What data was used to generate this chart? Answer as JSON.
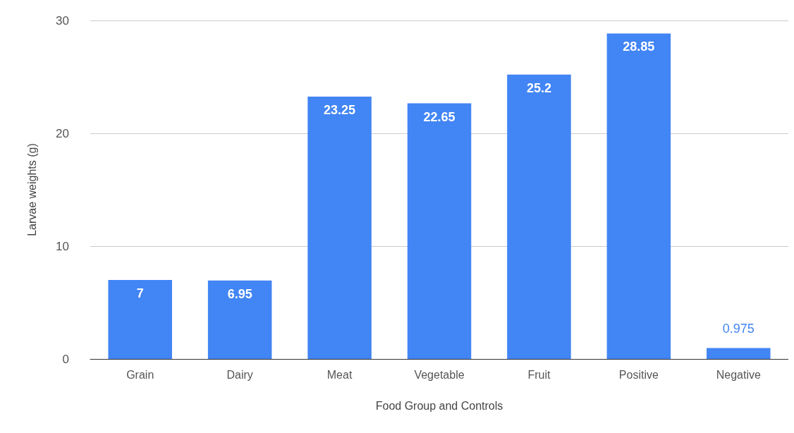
{
  "chart_data": {
    "type": "bar",
    "xlabel": "Food Group and Controls",
    "ylabel": "Larvae weights (g)",
    "categories": [
      "Grain",
      "Dairy",
      "Meat",
      "Vegetable",
      "Fruit",
      "Positive",
      "Negative"
    ],
    "values": [
      7,
      6.95,
      23.25,
      22.65,
      25.2,
      28.85,
      0.975
    ],
    "color": "#4285f4",
    "ylim": [
      0,
      30
    ],
    "yticks": [
      0,
      10,
      20,
      30
    ],
    "grid": "y",
    "data_labels": true
  }
}
